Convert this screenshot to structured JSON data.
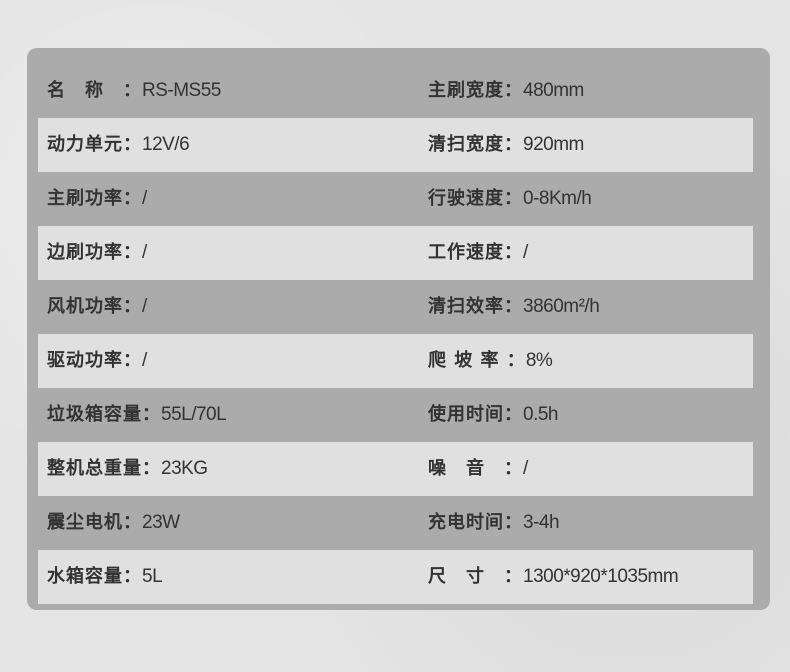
{
  "rows": [
    {
      "left": {
        "label": "名　称　：",
        "value": "RS-MS55"
      },
      "right": {
        "label": "主刷宽度：",
        "value": "480mm"
      }
    },
    {
      "left": {
        "label": "动力单元：",
        "value": "12V/6"
      },
      "right": {
        "label": "清扫宽度：",
        "value": "920mm"
      }
    },
    {
      "left": {
        "label": "主刷功率：",
        "value": "/"
      },
      "right": {
        "label": "行驶速度：",
        "value": "0-8Km/h"
      }
    },
    {
      "left": {
        "label": "边刷功率：",
        "value": "/"
      },
      "right": {
        "label": "工作速度：",
        "value": "/"
      }
    },
    {
      "left": {
        "label": "风机功率：",
        "value": "/"
      },
      "right": {
        "label": "清扫效率：",
        "value": "3860m²/h"
      }
    },
    {
      "left": {
        "label": "驱动功率：",
        "value": "/"
      },
      "right": {
        "label": "爬 坡 率 ：",
        "value": "8%"
      }
    },
    {
      "left": {
        "label": "垃圾箱容量：",
        "value": "55L/70L"
      },
      "right": {
        "label": "使用时间：",
        "value": "0.5h"
      }
    },
    {
      "left": {
        "label": "整机总重量：",
        "value": "23KG"
      },
      "right": {
        "label": "噪　音　：",
        "value": "/"
      }
    },
    {
      "left": {
        "label": "震尘电机：",
        "value": "23W"
      },
      "right": {
        "label": "充电时间：",
        "value": "3-4h"
      }
    },
    {
      "left": {
        "label": "水箱容量：",
        "value": "5L"
      },
      "right": {
        "label": "尺　寸　：",
        "value": "1300*920*1035mm"
      }
    }
  ],
  "colors": {
    "panel": "#ababab",
    "stripe": "#e0e0e0",
    "text": "#333333"
  }
}
